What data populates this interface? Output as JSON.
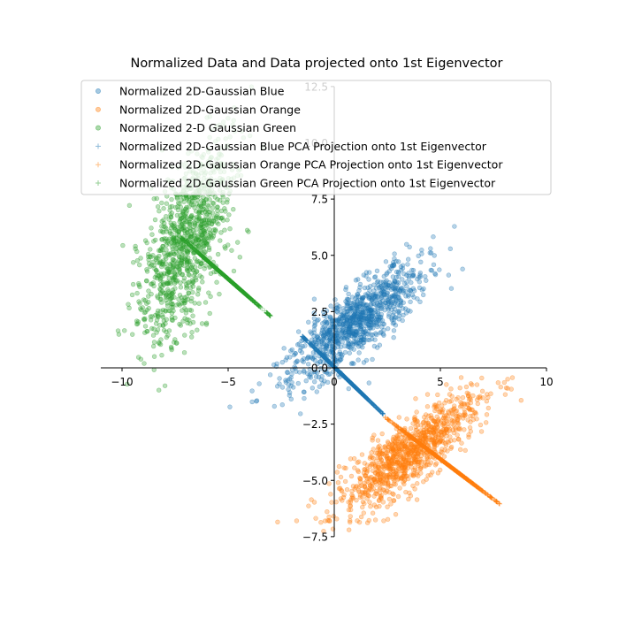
{
  "chart_data": {
    "type": "scatter",
    "title": "Normalized Data and Data projected onto 1st Eigenvector",
    "xlabel": "",
    "ylabel": "",
    "xlim": [
      -11,
      10
    ],
    "ylim": [
      -7.5,
      12.5
    ],
    "x_ticks": [
      -10,
      -5,
      0,
      5,
      10
    ],
    "y_ticks": [
      -7.5,
      -5.0,
      -2.5,
      0.0,
      2.5,
      5.0,
      7.5,
      10.0,
      12.5
    ],
    "x_tick_labels": [
      "−10",
      "−5",
      "0",
      "5",
      "10"
    ],
    "y_tick_labels": [
      "−7.5",
      "−5.0",
      "−2.5",
      "0.0",
      "2.5",
      "5.0",
      "7.5",
      "10.0",
      "12.5"
    ],
    "spines": "centered at origin",
    "grid": false,
    "legend_position": "upper-left",
    "series": [
      {
        "name": "Normalized 2D-Gaussian Blue",
        "kind": "scatter",
        "marker": "circle",
        "color": "#1f77b4",
        "center": [
          1.0,
          2.0
        ],
        "principal_direction": [
          0.79,
          0.62
        ],
        "spread_major": 2.0,
        "spread_minor": 0.62,
        "x_extent": [
          -6.5,
          5.5
        ],
        "count": 1000
      },
      {
        "name": "Normalized 2D-Gaussian Orange",
        "kind": "scatter",
        "marker": "circle",
        "color": "#ff7f0e",
        "center": [
          3.5,
          -3.8
        ],
        "principal_direction": [
          0.8,
          0.6
        ],
        "spread_major": 2.0,
        "spread_minor": 0.6,
        "x_extent": [
          -2.5,
          9.5
        ],
        "count": 1000
      },
      {
        "name": "Normalized 2-D Gaussian Green",
        "kind": "scatter",
        "marker": "circle",
        "color": "#2ca02c",
        "center": [
          -7.0,
          5.5
        ],
        "principal_direction": [
          0.3,
          0.95
        ],
        "spread_major": 2.3,
        "spread_minor": 0.85,
        "x_extent": [
          -11,
          -4
        ],
        "count": 1000
      },
      {
        "name": "Normalized 2D-Gaussian Blue PCA Projection onto 1st Eigenvector",
        "kind": "projection",
        "marker": "plus",
        "color": "#1f77b4",
        "line_from": [
          -1.5,
          1.4
        ],
        "line_to": [
          2.3,
          -2.05
        ],
        "count": 1000
      },
      {
        "name": "Normalized 2D-Gaussian Orange PCA Projection onto 1st Eigenvector",
        "kind": "projection",
        "marker": "plus",
        "color": "#ff7f0e",
        "line_from": [
          2.4,
          -2.2
        ],
        "line_to": [
          7.8,
          -6.05
        ],
        "count": 1000
      },
      {
        "name": "Normalized 2D-Gaussian Green PCA Projection onto 1st Eigenvector",
        "kind": "projection",
        "marker": "plus",
        "color": "#2ca02c",
        "line_from": [
          -7.3,
          5.85
        ],
        "line_to": [
          -3.0,
          2.3
        ],
        "count": 1000
      }
    ]
  }
}
